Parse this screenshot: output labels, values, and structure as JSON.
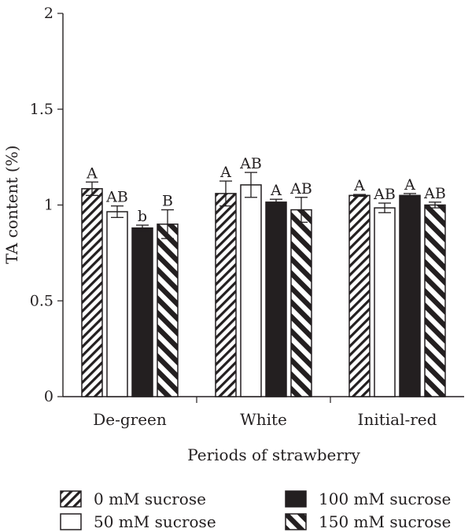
{
  "chart_data": {
    "type": "bar",
    "title": "",
    "xlabel": "Periods of strawberry",
    "ylabel": "TA content (%)",
    "ylim": [
      0,
      2
    ],
    "yticks": [
      "0",
      "0.5",
      "1",
      "1.5",
      "2"
    ],
    "ytick_values": [
      0,
      0.5,
      1,
      1.5,
      2
    ],
    "categories": [
      "De-green",
      "White",
      "Initial-red"
    ],
    "series": [
      {
        "name": "0 mM sucrose",
        "pattern": "diagonal-hatch",
        "values": [
          1.085,
          1.06,
          1.05
        ],
        "errors": [
          0.035,
          0.065,
          0.005
        ],
        "labels": [
          "A",
          "A",
          "A"
        ]
      },
      {
        "name": "50 mM sucrose",
        "pattern": "white",
        "values": [
          0.965,
          1.105,
          0.985
        ],
        "errors": [
          0.03,
          0.065,
          0.025
        ],
        "labels": [
          "AB",
          "AB",
          "AB"
        ]
      },
      {
        "name": "100 mM sucrose",
        "pattern": "black",
        "values": [
          0.88,
          1.015,
          1.05
        ],
        "errors": [
          0.015,
          0.015,
          0.01
        ],
        "labels": [
          "b",
          "A",
          "A"
        ]
      },
      {
        "name": "150 mM sucrose",
        "pattern": "bold-stripe",
        "values": [
          0.9,
          0.975,
          1.0
        ],
        "errors": [
          0.075,
          0.065,
          0.015
        ],
        "labels": [
          "B",
          "AB",
          "AB"
        ]
      }
    ],
    "legend_position": "bottom",
    "grid": false
  },
  "colors": {
    "ink": "#231f20",
    "fill_white": "#ffffff",
    "fill_black": "#231f20"
  }
}
